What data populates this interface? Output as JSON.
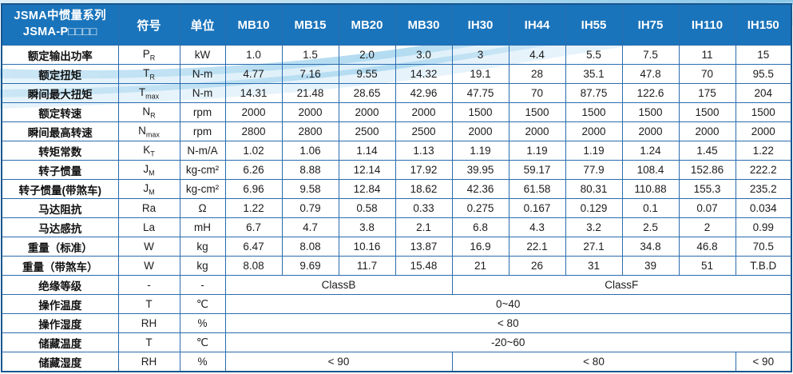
{
  "colors": {
    "header_bg": "#1a74bb",
    "header_border": "#0e4a80",
    "grid_border": "#2a6cae",
    "outer_border": "#17568f",
    "text": "#1c1c1c",
    "swoosh_main": "#8ec9e9",
    "swoosh_light": "#d4ebf8"
  },
  "table": {
    "title_line1": "JSMA中惯量系列",
    "title_line2": "JSMA-P□□□□",
    "col_headers": [
      "符号",
      "单位",
      "MB10",
      "MB15",
      "MB20",
      "MB30",
      "IH30",
      "IH44",
      "IH55",
      "IH75",
      "IH110",
      "IH150"
    ],
    "rows": [
      {
        "label": "额定输出功率",
        "sym": "P",
        "sub": "R",
        "unit": "kW",
        "values": [
          "1.0",
          "1.5",
          "2.0",
          "3.0",
          "3",
          "4.4",
          "5.5",
          "7.5",
          "11",
          "15"
        ]
      },
      {
        "label": "额定扭矩",
        "sym": "T",
        "sub": "R",
        "unit": "N-m",
        "values": [
          "4.77",
          "7.16",
          "9.55",
          "14.32",
          "19.1",
          "28",
          "35.1",
          "47.8",
          "70",
          "95.5"
        ]
      },
      {
        "label": "瞬间最大扭矩",
        "sym": "T",
        "sub": "max",
        "unit": "N-m",
        "values": [
          "14.31",
          "21.48",
          "28.65",
          "42.96",
          "47.75",
          "70",
          "87.75",
          "122.6",
          "175",
          "204"
        ]
      },
      {
        "label": "额定转速",
        "sym": "N",
        "sub": "R",
        "unit": "rpm",
        "values": [
          "2000",
          "2000",
          "2000",
          "2000",
          "1500",
          "1500",
          "1500",
          "1500",
          "1500",
          "1500"
        ]
      },
      {
        "label": "瞬间最高转速",
        "sym": "N",
        "sub": "max",
        "unit": "rpm",
        "values": [
          "2800",
          "2800",
          "2500",
          "2500",
          "2000",
          "2000",
          "2000",
          "2000",
          "2000",
          "2000"
        ]
      },
      {
        "label": "转矩常数",
        "sym": "K",
        "sub": "T",
        "unit": "N-m/A",
        "values": [
          "1.02",
          "1.06",
          "1.14",
          "1.13",
          "1.19",
          "1.19",
          "1.19",
          "1.24",
          "1.45",
          "1.22"
        ]
      },
      {
        "label": "转子惯量",
        "sym": "J",
        "sub": "M",
        "unit": "kg-cm²",
        "values": [
          "6.26",
          "8.88",
          "12.14",
          "17.92",
          "39.95",
          "59.17",
          "77.9",
          "108.4",
          "152.86",
          "222.2"
        ]
      },
      {
        "label": "转子惯量(带煞车)",
        "sym": "J",
        "sub": "M",
        "unit": "kg-cm²",
        "values": [
          "6.96",
          "9.58",
          "12.84",
          "18.62",
          "42.36",
          "61.58",
          "80.31",
          "110.88",
          "155.3",
          "235.2"
        ]
      },
      {
        "label": "马达阻抗",
        "sym": "Ra",
        "sub": "",
        "unit": "Ω",
        "values": [
          "1.22",
          "0.79",
          "0.58",
          "0.33",
          "0.275",
          "0.167",
          "0.129",
          "0.1",
          "0.07",
          "0.034"
        ]
      },
      {
        "label": "马达感抗",
        "sym": "La",
        "sub": "",
        "unit": "mH",
        "values": [
          "6.7",
          "4.7",
          "3.8",
          "2.1",
          "6.8",
          "4.3",
          "3.2",
          "2.5",
          "2",
          "0.99"
        ]
      },
      {
        "label": "重量（标准）",
        "sym": "W",
        "sub": "",
        "unit": "kg",
        "values": [
          "6.47",
          "8.08",
          "10.16",
          "13.87",
          "16.9",
          "22.1",
          "27.1",
          "34.8",
          "46.8",
          "70.5"
        ]
      },
      {
        "label": "重量（带煞车）",
        "sym": "W",
        "sub": "",
        "unit": "kg",
        "values": [
          "8.08",
          "9.69",
          "11.7",
          "15.48",
          "21",
          "26",
          "31",
          "39",
          "51",
          "T.B.D"
        ]
      },
      {
        "label": "绝缘等级",
        "sym": "-",
        "sub": "",
        "unit": "-",
        "spans": [
          {
            "text": "ClassB",
            "cols": 4
          },
          {
            "text": "ClassF",
            "cols": 6
          }
        ]
      },
      {
        "label": "操作温度",
        "sym": "T",
        "sub": "",
        "unit": "℃",
        "spans": [
          {
            "text": "0~40",
            "cols": 10
          }
        ]
      },
      {
        "label": "操作湿度",
        "sym": "RH",
        "sub": "",
        "unit": "%",
        "spans": [
          {
            "text": "< 80",
            "cols": 10
          }
        ]
      },
      {
        "label": "储藏温度",
        "sym": "T",
        "sub": "",
        "unit": "℃",
        "spans": [
          {
            "text": "-20~60",
            "cols": 10
          }
        ]
      },
      {
        "label": "储藏湿度",
        "sym": "RH",
        "sub": "",
        "unit": "%",
        "spans": [
          {
            "text": "< 90",
            "cols": 4
          },
          {
            "text": "< 80",
            "cols": 5
          },
          {
            "text": "< 90",
            "cols": 1
          }
        ]
      }
    ]
  }
}
